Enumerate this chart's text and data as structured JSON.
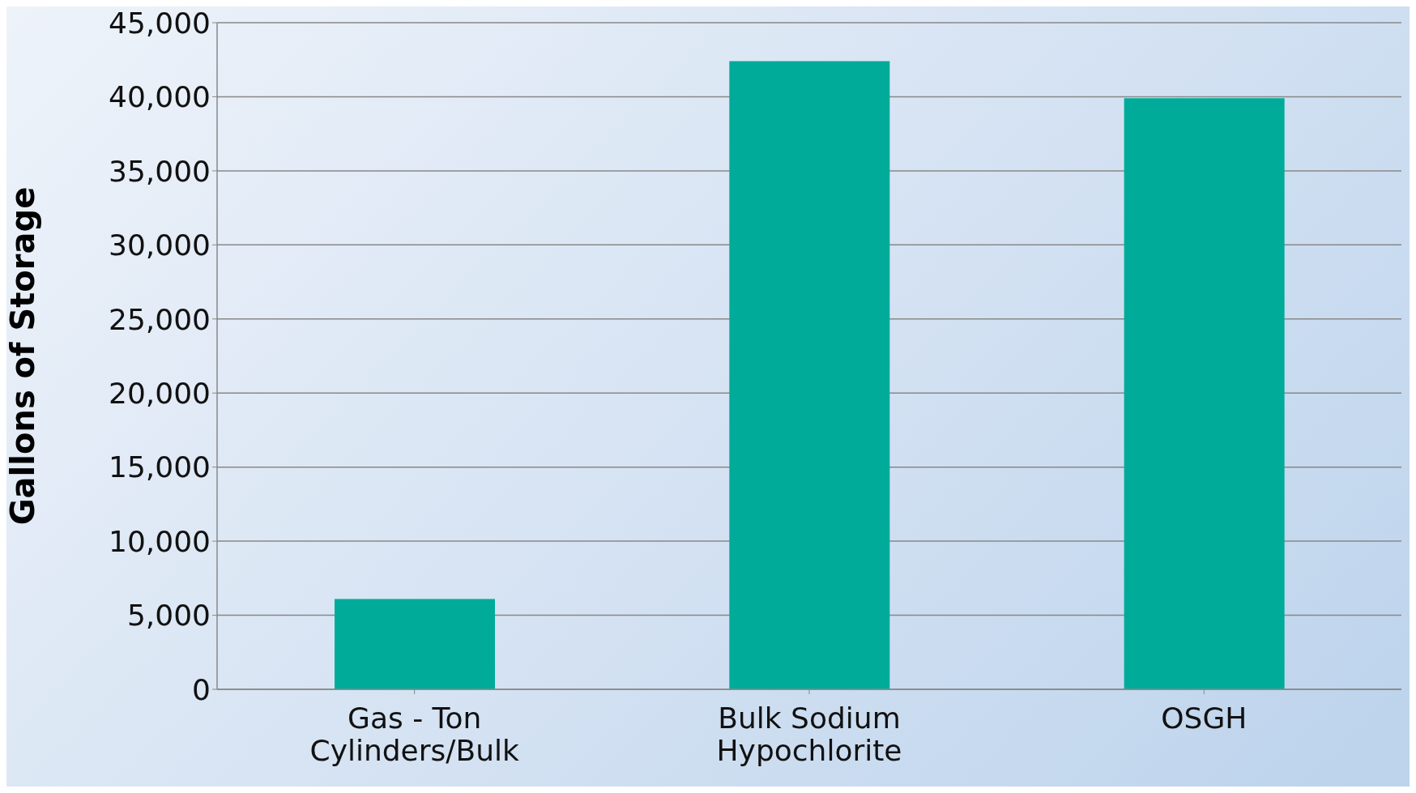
{
  "chart_data": {
    "type": "bar",
    "ylabel": "Gallons of Storage",
    "categories": [
      "Gas - Ton Cylinders/Bulk",
      "Bulk Sodium Hypochlorite",
      "OSGH"
    ],
    "values": [
      6100,
      42400,
      39900
    ],
    "color": "#00ab9a",
    "ylim": [
      0,
      45000
    ],
    "yticks": [
      0,
      {
        "value": 5000,
        "label": "5,000"
      },
      {
        "value": 10000,
        "label": "10,000"
      },
      {
        "value": 15000,
        "label": "15,000"
      },
      {
        "value": 20000,
        "label": "20,000"
      },
      {
        "value": 25000,
        "label": "25,000"
      },
      {
        "value": 30000,
        "label": "30,000"
      },
      {
        "value": 35000,
        "label": "35,000"
      },
      {
        "value": 40000,
        "label": "40,000"
      },
      {
        "value": 45000,
        "label": "45,000"
      }
    ],
    "grid": "y"
  }
}
